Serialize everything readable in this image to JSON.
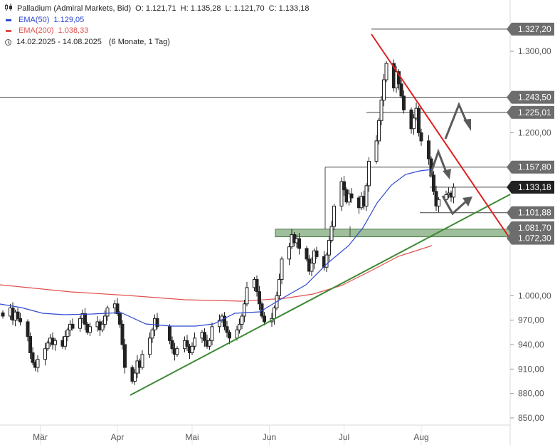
{
  "header": {
    "instrument": "Palladium (Admiral Markets, Bid)",
    "ohlc": {
      "open": "O: 1.121,71",
      "high": "H: 1.135,28",
      "low": "L: 1.121,70",
      "close": "C: 1.133,18"
    },
    "ema50": {
      "label": "EMA(50)",
      "value": "1.129,05",
      "color": "#2f49d1"
    },
    "ema200": {
      "label": "EMA(200)",
      "value": "1.038,33",
      "color": "#e0504c"
    },
    "range": "14.02.2025 - 14.08.2025",
    "range_note": "(6 Monate, 1 Tag)"
  },
  "chart_data": {
    "type": "candlestick",
    "x_range": [
      "2025-02-14",
      "2025-08-14"
    ],
    "y_range": [
      835,
      1345
    ],
    "y_ticks": [
      {
        "value": 850,
        "label": "850,00"
      },
      {
        "value": 880,
        "label": "880,00"
      },
      {
        "value": 910,
        "label": "910,00"
      },
      {
        "value": 940,
        "label": "940,00"
      },
      {
        "value": 970,
        "label": "970,00"
      },
      {
        "value": 1000,
        "label": "1.000,00"
      },
      {
        "value": 1200,
        "label": "1.200,00"
      },
      {
        "value": 1300,
        "label": "1.300,00"
      }
    ],
    "x_ticks": [
      {
        "date": "2025-03-01",
        "label": "Mär"
      },
      {
        "date": "2025-04-01",
        "label": "Apr"
      },
      {
        "date": "2025-05-01",
        "label": "Mai"
      },
      {
        "date": "2025-06-01",
        "label": "Jun"
      },
      {
        "date": "2025-07-01",
        "label": "Jul"
      },
      {
        "date": "2025-08-01",
        "label": "Aug"
      }
    ],
    "price_tags": [
      {
        "value": 1327.2,
        "label": "1.327,20",
        "color": "#6d6d6d"
      },
      {
        "value": 1243.5,
        "label": "1.243,50",
        "color": "#6d6d6d"
      },
      {
        "value": 1225.01,
        "label": "1.225,01",
        "color": "#6d6d6d"
      },
      {
        "value": 1157.8,
        "label": "1.157,80",
        "color": "#6d6d6d"
      },
      {
        "value": 1133.18,
        "label": "1.133,18",
        "color": "#222222"
      },
      {
        "value": 1101.88,
        "label": "1.101,88",
        "color": "#6d6d6d"
      },
      {
        "value": 1081.7,
        "label": "1.081,70",
        "color": "#6d6d6d"
      },
      {
        "value": 1072.3,
        "label": "1.072,30",
        "color": "#6d6d6d"
      }
    ],
    "closes": [
      {
        "date": "2025-02-14",
        "close": 975
      },
      {
        "date": "2025-02-17",
        "close": 985
      },
      {
        "date": "2025-02-18",
        "close": 970
      },
      {
        "date": "2025-02-19",
        "close": 980
      },
      {
        "date": "2025-02-20",
        "close": 972
      },
      {
        "date": "2025-02-21",
        "close": 968
      },
      {
        "date": "2025-02-24",
        "close": 950
      },
      {
        "date": "2025-02-25",
        "close": 930
      },
      {
        "date": "2025-02-26",
        "close": 918
      },
      {
        "date": "2025-02-27",
        "close": 912
      },
      {
        "date": "2025-02-28",
        "close": 922
      },
      {
        "date": "2025-03-03",
        "close": 935
      },
      {
        "date": "2025-03-04",
        "close": 942
      },
      {
        "date": "2025-03-05",
        "close": 948
      },
      {
        "date": "2025-03-06",
        "close": 940
      },
      {
        "date": "2025-03-07",
        "close": 945
      },
      {
        "date": "2025-03-10",
        "close": 938
      },
      {
        "date": "2025-03-11",
        "close": 950
      },
      {
        "date": "2025-03-12",
        "close": 958
      },
      {
        "date": "2025-03-13",
        "close": 965
      },
      {
        "date": "2025-03-14",
        "close": 960
      },
      {
        "date": "2025-03-17",
        "close": 972
      },
      {
        "date": "2025-03-18",
        "close": 978
      },
      {
        "date": "2025-03-19",
        "close": 965
      },
      {
        "date": "2025-03-20",
        "close": 955
      },
      {
        "date": "2025-03-21",
        "close": 962
      },
      {
        "date": "2025-03-24",
        "close": 968
      },
      {
        "date": "2025-03-25",
        "close": 958
      },
      {
        "date": "2025-03-26",
        "close": 965
      },
      {
        "date": "2025-03-27",
        "close": 975
      },
      {
        "date": "2025-03-28",
        "close": 985
      },
      {
        "date": "2025-03-31",
        "close": 990
      },
      {
        "date": "2025-04-01",
        "close": 978
      },
      {
        "date": "2025-04-02",
        "close": 965
      },
      {
        "date": "2025-04-03",
        "close": 940
      },
      {
        "date": "2025-04-04",
        "close": 912
      },
      {
        "date": "2025-04-07",
        "close": 895
      },
      {
        "date": "2025-04-08",
        "close": 905
      },
      {
        "date": "2025-04-09",
        "close": 920
      },
      {
        "date": "2025-04-10",
        "close": 912
      },
      {
        "date": "2025-04-11",
        "close": 928
      },
      {
        "date": "2025-04-14",
        "close": 948
      },
      {
        "date": "2025-04-15",
        "close": 958
      },
      {
        "date": "2025-04-16",
        "close": 972
      },
      {
        "date": "2025-04-17",
        "close": 962
      },
      {
        "date": "2025-04-22",
        "close": 945
      },
      {
        "date": "2025-04-23",
        "close": 935
      },
      {
        "date": "2025-04-24",
        "close": 928
      },
      {
        "date": "2025-04-25",
        "close": 935
      },
      {
        "date": "2025-04-28",
        "close": 945
      },
      {
        "date": "2025-04-29",
        "close": 938
      },
      {
        "date": "2025-04-30",
        "close": 930
      },
      {
        "date": "2025-05-01",
        "close": 938
      },
      {
        "date": "2025-05-02",
        "close": 948
      },
      {
        "date": "2025-05-05",
        "close": 955
      },
      {
        "date": "2025-05-06",
        "close": 945
      },
      {
        "date": "2025-05-07",
        "close": 938
      },
      {
        "date": "2025-05-08",
        "close": 945
      },
      {
        "date": "2025-05-09",
        "close": 962
      },
      {
        "date": "2025-05-12",
        "close": 970
      },
      {
        "date": "2025-05-13",
        "close": 975
      },
      {
        "date": "2025-05-14",
        "close": 962
      },
      {
        "date": "2025-05-15",
        "close": 955
      },
      {
        "date": "2025-05-16",
        "close": 948
      },
      {
        "date": "2025-05-19",
        "close": 958
      },
      {
        "date": "2025-05-20",
        "close": 965
      },
      {
        "date": "2025-05-21",
        "close": 975
      },
      {
        "date": "2025-05-22",
        "close": 990
      },
      {
        "date": "2025-05-23",
        "close": 1010
      },
      {
        "date": "2025-05-26",
        "close": 1020
      },
      {
        "date": "2025-05-27",
        "close": 1005
      },
      {
        "date": "2025-05-28",
        "close": 990
      },
      {
        "date": "2025-05-29",
        "close": 975
      },
      {
        "date": "2025-05-30",
        "close": 968
      },
      {
        "date": "2025-06-02",
        "close": 972
      },
      {
        "date": "2025-06-03",
        "close": 985
      },
      {
        "date": "2025-06-04",
        "close": 1000
      },
      {
        "date": "2025-06-05",
        "close": 1020
      },
      {
        "date": "2025-06-06",
        "close": 1045
      },
      {
        "date": "2025-06-09",
        "close": 1060
      },
      {
        "date": "2025-06-10",
        "close": 1075
      },
      {
        "date": "2025-06-11",
        "close": 1065
      },
      {
        "date": "2025-06-12",
        "close": 1070
      },
      {
        "date": "2025-06-13",
        "close": 1058
      },
      {
        "date": "2025-06-16",
        "close": 1045
      },
      {
        "date": "2025-06-17",
        "close": 1030
      },
      {
        "date": "2025-06-18",
        "close": 1040
      },
      {
        "date": "2025-06-19",
        "close": 1055
      },
      {
        "date": "2025-06-20",
        "close": 1048
      },
      {
        "date": "2025-06-23",
        "close": 1035
      },
      {
        "date": "2025-06-24",
        "close": 1050
      },
      {
        "date": "2025-06-25",
        "close": 1068
      },
      {
        "date": "2025-06-26",
        "close": 1085
      },
      {
        "date": "2025-06-27",
        "close": 1110
      },
      {
        "date": "2025-06-30",
        "close": 1140
      },
      {
        "date": "2025-07-01",
        "close": 1130
      },
      {
        "date": "2025-07-02",
        "close": 1115
      },
      {
        "date": "2025-07-03",
        "close": 1125
      },
      {
        "date": "2025-07-04",
        "close": 1120
      },
      {
        "date": "2025-07-07",
        "close": 1108
      },
      {
        "date": "2025-07-08",
        "close": 1122
      },
      {
        "date": "2025-07-09",
        "close": 1110
      },
      {
        "date": "2025-07-10",
        "close": 1135
      },
      {
        "date": "2025-07-11",
        "close": 1165
      },
      {
        "date": "2025-07-14",
        "close": 1190
      },
      {
        "date": "2025-07-15",
        "close": 1215
      },
      {
        "date": "2025-07-16",
        "close": 1240
      },
      {
        "date": "2025-07-17",
        "close": 1265
      },
      {
        "date": "2025-07-18",
        "close": 1285
      },
      {
        "date": "2025-07-21",
        "close": 1255
      },
      {
        "date": "2025-07-22",
        "close": 1275
      },
      {
        "date": "2025-07-23",
        "close": 1260
      },
      {
        "date": "2025-07-24",
        "close": 1245
      },
      {
        "date": "2025-07-25",
        "close": 1228
      },
      {
        "date": "2025-07-28",
        "close": 1205
      },
      {
        "date": "2025-07-29",
        "close": 1218
      },
      {
        "date": "2025-07-30",
        "close": 1230
      },
      {
        "date": "2025-07-31",
        "close": 1200
      },
      {
        "date": "2025-08-01",
        "close": 1190
      },
      {
        "date": "2025-08-04",
        "close": 1168
      },
      {
        "date": "2025-08-05",
        "close": 1148
      },
      {
        "date": "2025-08-06",
        "close": 1128
      },
      {
        "date": "2025-08-07",
        "close": 1110
      },
      {
        "date": "2025-08-08",
        "close": 1118
      },
      {
        "date": "2025-08-11",
        "close": 1124
      },
      {
        "date": "2025-08-12",
        "close": 1126
      },
      {
        "date": "2025-08-13",
        "close": 1121
      },
      {
        "date": "2025-08-14",
        "close": 1133
      }
    ]
  }
}
